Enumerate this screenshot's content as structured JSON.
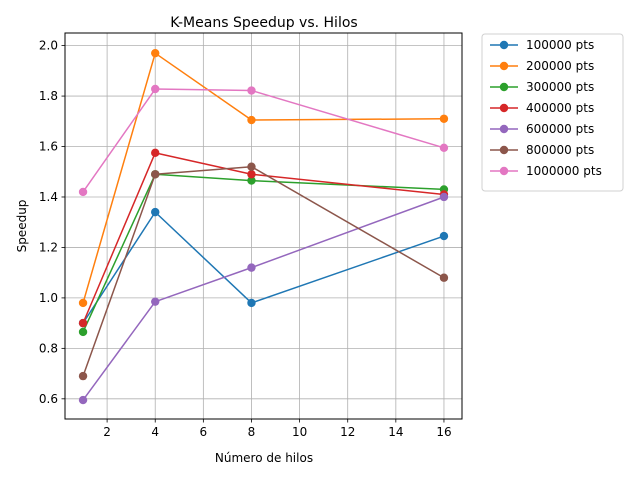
{
  "chart_data": {
    "type": "line",
    "title": "K-Means Speedup vs. Hilos",
    "xlabel": "Número de hilos",
    "ylabel": "Speedup",
    "x": [
      1,
      4,
      8,
      16
    ],
    "xlim": [
      0.25,
      16.75
    ],
    "ylim": [
      0.52,
      2.05
    ],
    "xticks": [
      2,
      4,
      6,
      8,
      10,
      12,
      14,
      16
    ],
    "yticks": [
      0.6,
      0.8,
      1.0,
      1.2,
      1.4,
      1.6,
      1.8,
      2.0
    ],
    "ytick_labels": [
      "0.6",
      "0.8",
      "1.0",
      "1.2",
      "1.4",
      "1.6",
      "1.8",
      "2.0"
    ],
    "grid": true,
    "legend_position": "outside-right-top",
    "series": [
      {
        "name": "100000 pts",
        "color": "#1f77b4",
        "values": [
          0.9,
          1.34,
          0.98,
          1.245
        ]
      },
      {
        "name": "200000 pts",
        "color": "#ff7f0e",
        "values": [
          0.98,
          1.97,
          1.705,
          1.71
        ]
      },
      {
        "name": "300000 pts",
        "color": "#2ca02c",
        "values": [
          0.865,
          1.49,
          1.465,
          1.43
        ]
      },
      {
        "name": "400000 pts",
        "color": "#d62728",
        "values": [
          0.9,
          1.575,
          1.49,
          1.41
        ]
      },
      {
        "name": "600000 pts",
        "color": "#9467bd",
        "values": [
          0.595,
          0.985,
          1.12,
          1.4
        ]
      },
      {
        "name": "800000 pts",
        "color": "#8c564b",
        "values": [
          0.69,
          1.49,
          1.52,
          1.08
        ]
      },
      {
        "name": "1000000 pts",
        "color": "#e377c2",
        "values": [
          1.42,
          1.828,
          1.822,
          1.595
        ]
      }
    ]
  }
}
